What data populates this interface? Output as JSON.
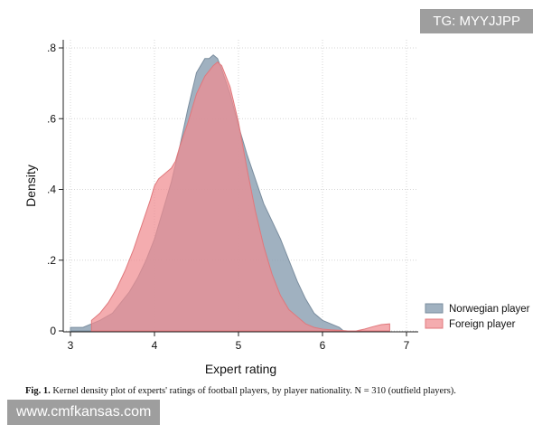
{
  "chart_data": {
    "type": "area",
    "title": "",
    "xlabel": "Expert rating",
    "ylabel": "Density",
    "xlim": [
      3,
      7
    ],
    "ylim": [
      0,
      0.8
    ],
    "xticks": [
      3,
      4,
      5,
      6,
      7
    ],
    "xtick_labels": [
      "3",
      "4",
      "5",
      "6",
      "7"
    ],
    "yticks": [
      0,
      0.2,
      0.4,
      0.6,
      0.8
    ],
    "ytick_labels": [
      "0",
      ".2",
      ".4",
      ".6",
      ".8"
    ],
    "grid": "dotted",
    "legend_position": "right",
    "series": [
      {
        "name": "Norwegian player",
        "color": "#8fa3b5",
        "edge": "#7a8d9e",
        "x": [
          3.0,
          3.15,
          3.25,
          3.35,
          3.5,
          3.6,
          3.7,
          3.8,
          3.9,
          4.0,
          4.1,
          4.2,
          4.3,
          4.4,
          4.5,
          4.6,
          4.65,
          4.7,
          4.75,
          4.8,
          4.9,
          5.0,
          5.1,
          5.2,
          5.3,
          5.4,
          5.5,
          5.6,
          5.7,
          5.8,
          5.9,
          6.0,
          6.1,
          6.2,
          6.25
        ],
        "y": [
          0.01,
          0.01,
          0.02,
          0.03,
          0.05,
          0.08,
          0.11,
          0.15,
          0.2,
          0.26,
          0.34,
          0.42,
          0.52,
          0.63,
          0.73,
          0.77,
          0.77,
          0.78,
          0.77,
          0.74,
          0.67,
          0.58,
          0.5,
          0.43,
          0.36,
          0.31,
          0.26,
          0.2,
          0.14,
          0.09,
          0.05,
          0.03,
          0.02,
          0.01,
          0.0
        ]
      },
      {
        "name": "Foreign player",
        "color": "#f08c90",
        "edge": "#e0787c",
        "x": [
          3.25,
          3.35,
          3.45,
          3.55,
          3.65,
          3.75,
          3.85,
          3.95,
          4.0,
          4.05,
          4.1,
          4.15,
          4.2,
          4.25,
          4.3,
          4.4,
          4.5,
          4.6,
          4.7,
          4.75,
          4.8,
          4.9,
          5.0,
          5.1,
          5.2,
          5.3,
          5.4,
          5.5,
          5.6,
          5.7,
          5.8,
          5.9,
          6.0,
          6.1,
          6.2,
          6.3,
          6.4,
          6.5,
          6.6,
          6.7,
          6.8
        ],
        "y": [
          0.03,
          0.05,
          0.08,
          0.12,
          0.17,
          0.23,
          0.3,
          0.37,
          0.41,
          0.43,
          0.44,
          0.45,
          0.46,
          0.48,
          0.52,
          0.59,
          0.67,
          0.72,
          0.75,
          0.76,
          0.75,
          0.69,
          0.59,
          0.46,
          0.34,
          0.24,
          0.16,
          0.1,
          0.06,
          0.04,
          0.02,
          0.01,
          0.005,
          0.003,
          0.002,
          0.0,
          0.0,
          0.005,
          0.012,
          0.018,
          0.02
        ]
      }
    ]
  },
  "caption": {
    "label": "Fig. 1.",
    "text": " Kernel density plot of experts' ratings of football players, by player nationality. N = 310 (outfield players)."
  },
  "watermarks": {
    "top": "TG: MYYJJPP",
    "bottom": "www.cmfkansas.com"
  }
}
